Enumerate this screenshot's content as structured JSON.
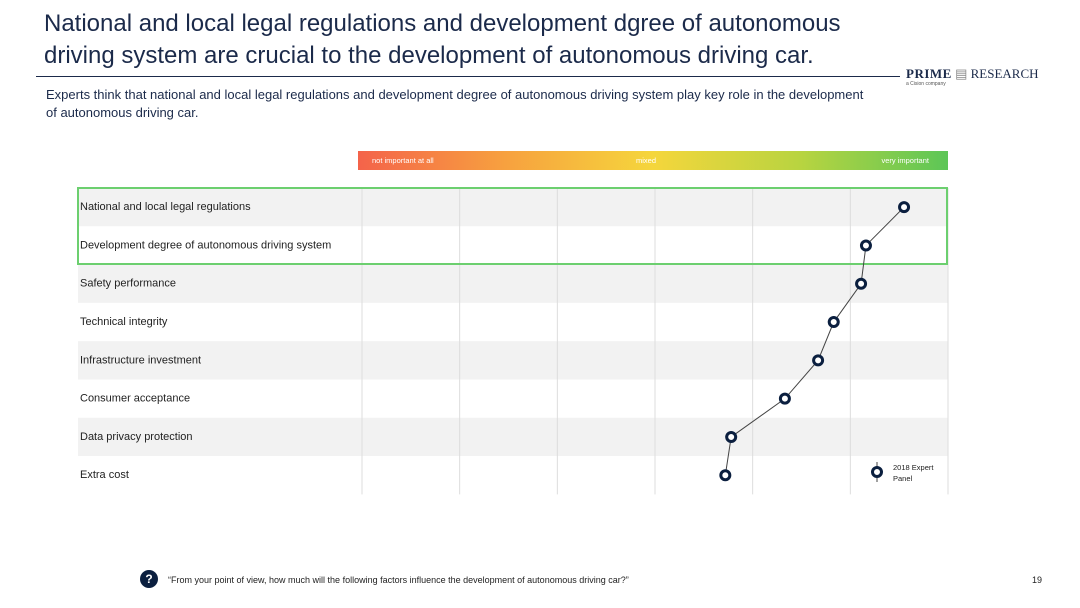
{
  "header": {
    "title": "National and local legal regulations and development dgree of autonomous driving system are crucial to the development of autonomous driving car.",
    "logo": "PRIME",
    "logo_word": "RESEARCH",
    "logo_sub": "a Cision company",
    "subtitle": "Experts think that national and local legal regulations and development degree of autonomous driving system play key role in the development of autonomous driving car."
  },
  "chart_data": {
    "type": "dotline",
    "scale_labels": [
      "not important at all",
      "mixed",
      "very important"
    ],
    "categories": [
      "National and local legal regulations",
      "Development degree of autonomous driving system",
      "Safety performance",
      "Technical integrity",
      "Infrastructure investment",
      "Consumer acceptance",
      "Data privacy protection",
      "Extra cost"
    ],
    "xlim": [
      0,
      6
    ],
    "series": [
      {
        "name": "2018 Expert Panel",
        "color": "#0b1f3f",
        "values": [
          5.55,
          5.16,
          5.11,
          4.83,
          4.67,
          4.33,
          3.78,
          3.72
        ]
      }
    ]
  },
  "footer": {
    "icon": "?",
    "question": "“From your point of view, how much will the following factors influence the development of autonomous driving car?”",
    "page": "19"
  }
}
